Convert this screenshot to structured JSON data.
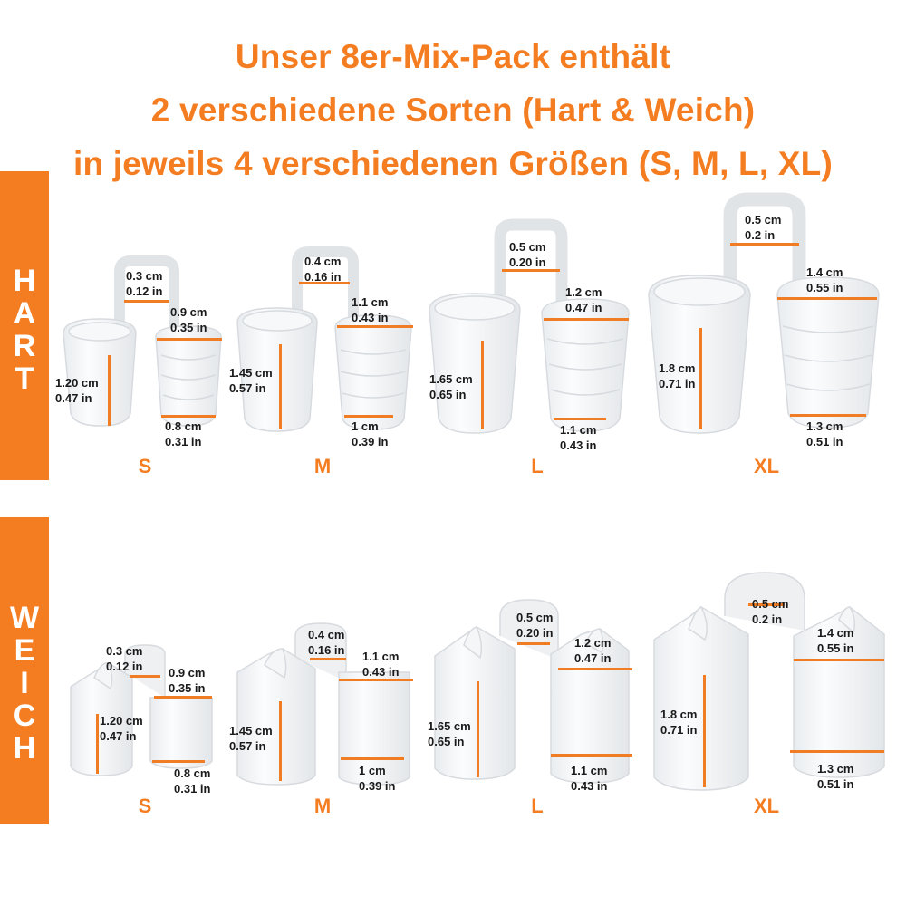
{
  "title": {
    "line1": "Unser 8er-Mix-Pack enthält",
    "line2": "2 verschiedene Sorten (Hart & Weich)",
    "line3": "in jeweils 4 verschiedenen Größen (S, M, L, XL)"
  },
  "colors": {
    "accent": "#f47d21",
    "text": "#1a1a1a",
    "background": "#ffffff"
  },
  "hart": {
    "label": [
      "H",
      "A",
      "R",
      "T"
    ],
    "sizes": {
      "s": {
        "label": "S",
        "bridge": {
          "cm": "0.3 cm",
          "in": "0.12 in"
        },
        "top": {
          "cm": "0.9 cm",
          "in": "0.35 in"
        },
        "height": {
          "cm": "1.20 cm",
          "in": "0.47 in"
        },
        "bottom": {
          "cm": "0.8 cm",
          "in": "0.31 in"
        }
      },
      "m": {
        "label": "M",
        "bridge": {
          "cm": "0.4 cm",
          "in": "0.16 in"
        },
        "top": {
          "cm": "1.1 cm",
          "in": "0.43 in"
        },
        "height": {
          "cm": "1.45 cm",
          "in": "0.57 in"
        },
        "bottom": {
          "cm": "1 cm",
          "in": "0.39 in"
        }
      },
      "l": {
        "label": "L",
        "bridge": {
          "cm": "0.5 cm",
          "in": "0.20 in"
        },
        "top": {
          "cm": "1.2 cm",
          "in": "0.47 in"
        },
        "height": {
          "cm": "1.65 cm",
          "in": "0.65 in"
        },
        "bottom": {
          "cm": "1.1 cm",
          "in": "0.43 in"
        }
      },
      "xl": {
        "label": "XL",
        "bridge": {
          "cm": "0.5 cm",
          "in": "0.2 in"
        },
        "top": {
          "cm": "1.4 cm",
          "in": "0.55 in"
        },
        "height": {
          "cm": "1.8 cm",
          "in": "0.71 in"
        },
        "bottom": {
          "cm": "1.3 cm",
          "in": "0.51 in"
        }
      }
    }
  },
  "weich": {
    "label": [
      "W",
      "E",
      "I",
      "C",
      "H"
    ],
    "sizes": {
      "s": {
        "label": "S",
        "bridge": {
          "cm": "0.3 cm",
          "in": "0.12 in"
        },
        "top": {
          "cm": "0.9 cm",
          "in": "0.35 in"
        },
        "height": {
          "cm": "1.20 cm",
          "in": "0.47 in"
        },
        "bottom": {
          "cm": "0.8 cm",
          "in": "0.31 in"
        }
      },
      "m": {
        "label": "M",
        "bridge": {
          "cm": "0.4 cm",
          "in": "0.16 in"
        },
        "top": {
          "cm": "1.1 cm",
          "in": "0.43 in"
        },
        "height": {
          "cm": "1.45 cm",
          "in": "0.57 in"
        },
        "bottom": {
          "cm": "1 cm",
          "in": "0.39 in"
        }
      },
      "l": {
        "label": "L",
        "bridge": {
          "cm": "0.5 cm",
          "in": "0.20 in"
        },
        "top": {
          "cm": "1.2 cm",
          "in": "0.47 in"
        },
        "height": {
          "cm": "1.65 cm",
          "in": "0.65 in"
        },
        "bottom": {
          "cm": "1.1 cm",
          "in": "0.43 in"
        }
      },
      "xl": {
        "label": "XL",
        "bridge": {
          "cm": "0.5 cm",
          "in": "0.2 in"
        },
        "top": {
          "cm": "1.4 cm",
          "in": "0.55 in"
        },
        "height": {
          "cm": "1.8 cm",
          "in": "0.71 in"
        },
        "bottom": {
          "cm": "1.3 cm",
          "in": "0.51 in"
        }
      }
    }
  }
}
